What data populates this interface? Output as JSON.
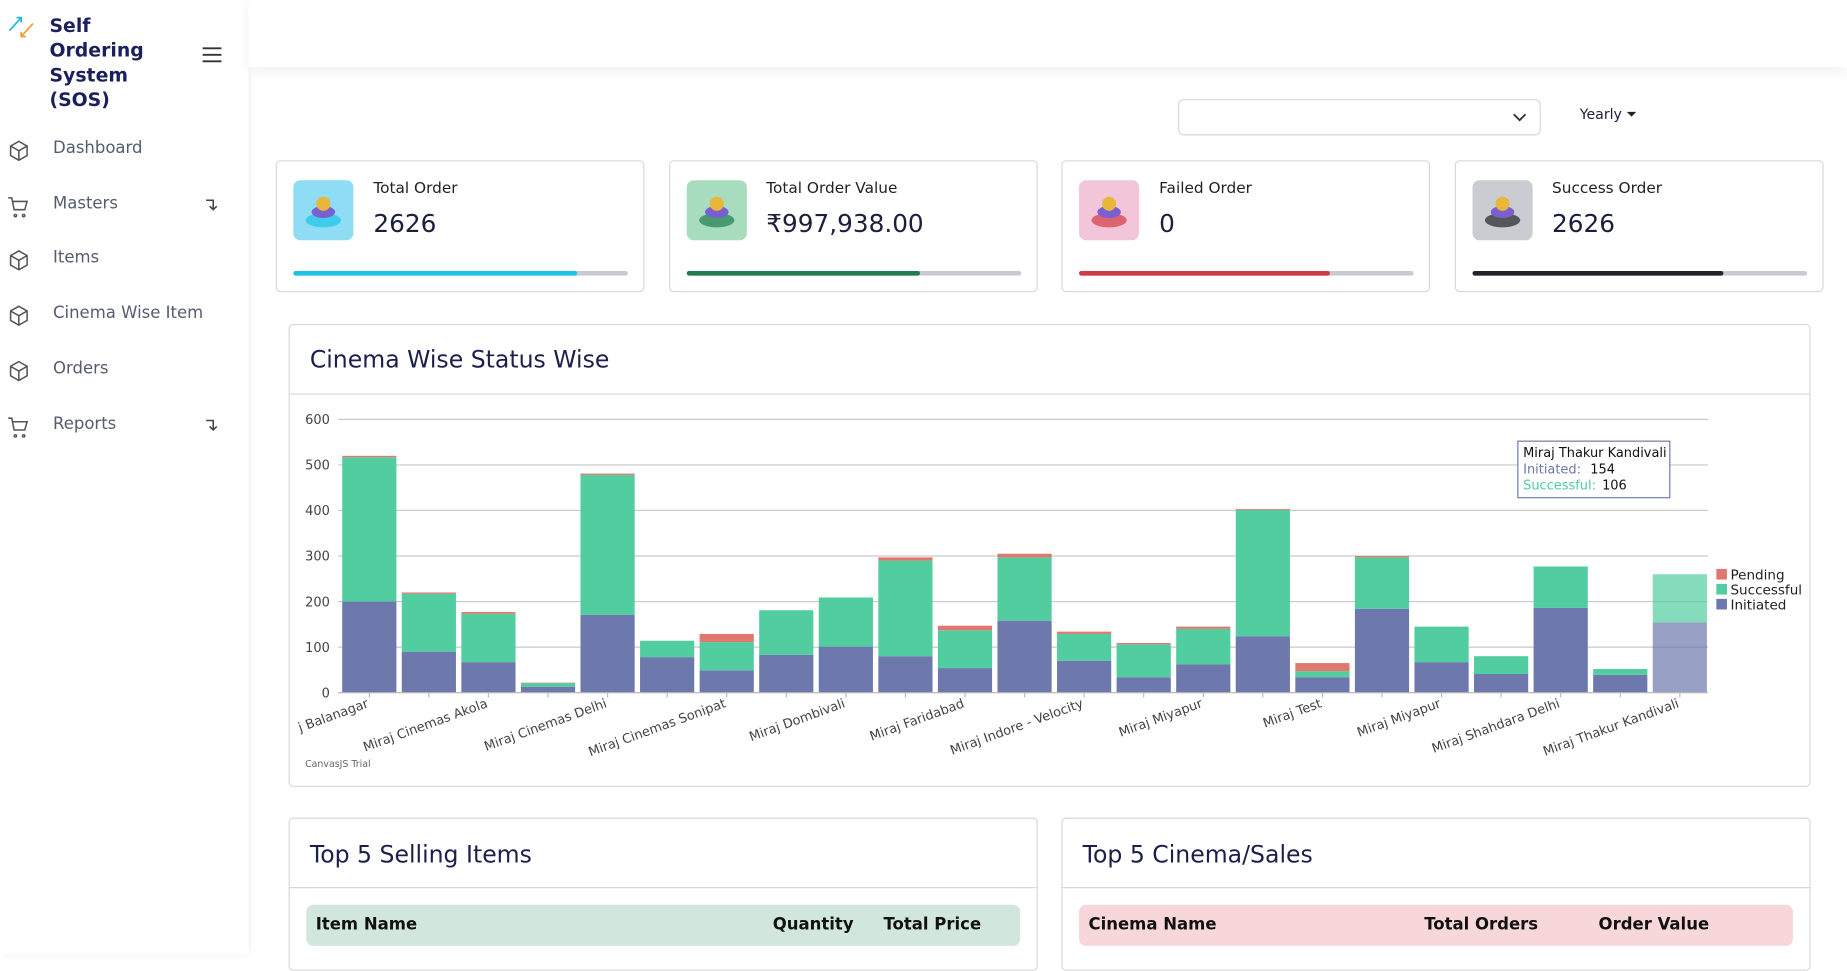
{
  "sidebar": {
    "brand": "Self Ordering System (SOS)",
    "menu": [
      {
        "label": "Dashboard",
        "submenu": false
      },
      {
        "label": "Masters",
        "submenu": true
      },
      {
        "label": "Items",
        "submenu": false
      },
      {
        "label": "Cinema Wise Item",
        "submenu": false
      },
      {
        "label": "Orders",
        "submenu": false
      },
      {
        "label": "Reports",
        "submenu": true
      }
    ]
  },
  "filters": {
    "period": "Yearly"
  },
  "cards": [
    {
      "title": "Total Order",
      "value": 2626,
      "progress": 85,
      "color": "#1cc3e6",
      "icon_bg": "#8fdcf5"
    },
    {
      "title": "Total Order Value",
      "value": "₹997,938.00",
      "progress": 70,
      "color": "#1f7d4f",
      "icon_bg": "#a8dcbf"
    },
    {
      "title": "Failed Order",
      "value": 0,
      "progress": 75,
      "color": "#d13a45",
      "icon_bg": "#f2c6d8"
    },
    {
      "title": "Success Order",
      "value": 2626,
      "progress": 75,
      "color": "#212529",
      "icon_bg": "#c9ccd1"
    }
  ],
  "chart_data": {
    "type": "bar",
    "stacked": true,
    "title": "Cinema Wise Status Wise",
    "categories": [
      "j Balanagar",
      null,
      "Miraj Cinemas Akola",
      null,
      "Miraj Cinemas Delhi",
      null,
      "Miraj Cinemas Sonipat",
      null,
      "Miraj Dombivali",
      null,
      "Miraj Faridabad",
      null,
      "Miraj Indore - Velocity",
      null,
      "Miraj Miyapur",
      null,
      "Miraj Test",
      null,
      "Miraj Miyapur",
      null,
      "Miraj Shahdara Delhi",
      null,
      "Miraj Thakur Kandivali"
    ],
    "series": [
      {
        "name": "Initiated",
        "color": "#6d78ad",
        "values": [
          200,
          90,
          67,
          13,
          171,
          78,
          49,
          83,
          101,
          80,
          54,
          158,
          70,
          34,
          62,
          124,
          34,
          184,
          67,
          41,
          186,
          39,
          154
        ]
      },
      {
        "name": "Successful",
        "color": "#51cda0",
        "values": [
          317,
          127,
          106,
          8,
          307,
          36,
          62,
          98,
          108,
          210,
          83,
          139,
          59,
          72,
          78,
          277,
          13,
          113,
          78,
          39,
          91,
          13,
          106
        ]
      },
      {
        "name": "Pending",
        "color": "#df7970",
        "values": [
          3,
          3,
          4,
          1,
          3,
          0,
          18,
          0,
          0,
          7,
          10,
          8,
          5,
          3,
          5,
          2,
          18,
          3,
          0,
          0,
          0,
          0,
          0
        ]
      }
    ],
    "ylim": [
      0,
      600
    ],
    "yticks": [
      0,
      100,
      200,
      300,
      400,
      500,
      600
    ],
    "grid": true,
    "legend": "right",
    "tooltip": {
      "index": 22,
      "labels": [
        "Initiated:",
        "Successful:"
      ]
    },
    "watermark": "CanvasJS Trial"
  },
  "tables": [
    {
      "title": "Top 5 Selling Items",
      "header_bg": "#d1e7dd",
      "columns": [
        "Item Name",
        "Quantity",
        "Total Price"
      ]
    },
    {
      "title": "Top 5 Cinema/Sales",
      "header_bg": "#f8d7da",
      "columns": [
        "Cinema Name",
        "Total Orders",
        "Order Value"
      ]
    }
  ]
}
